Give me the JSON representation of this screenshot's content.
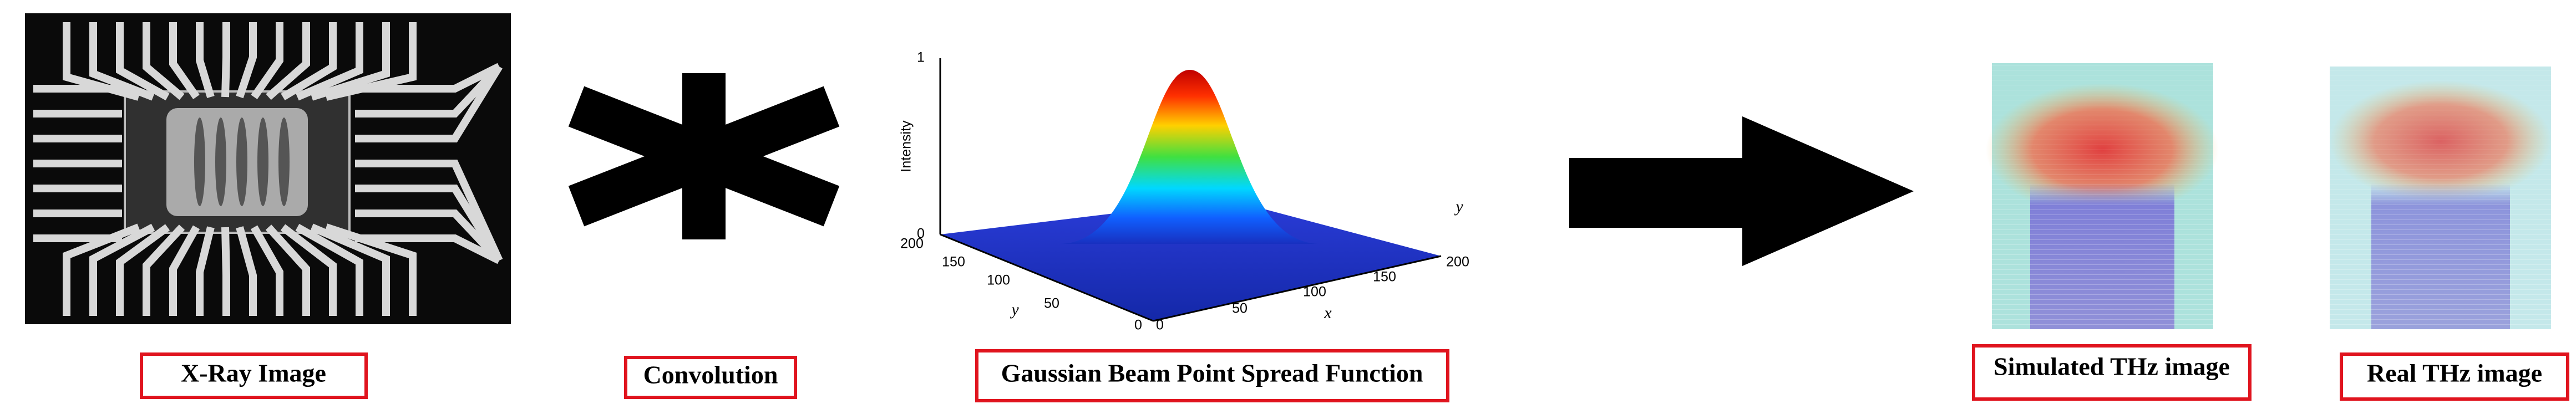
{
  "xray": {
    "label": "X-Ray Image"
  },
  "convolution": {
    "label": "Convolution"
  },
  "psf": {
    "label": "Gaussian Beam Point Spread Function",
    "z_axis": {
      "title": "Intensity",
      "ticks": [
        "0",
        "1"
      ]
    },
    "y_axis": {
      "title": "y",
      "ticks": [
        "200",
        "150",
        "100",
        "50",
        "0"
      ]
    },
    "x_axis": {
      "title": "x",
      "ticks": [
        "0",
        "50",
        "100",
        "150",
        "200"
      ]
    },
    "back_axis_title": "y"
  },
  "simulated": {
    "label": "Simulated THz image"
  },
  "real": {
    "label": "Real THz image"
  }
}
